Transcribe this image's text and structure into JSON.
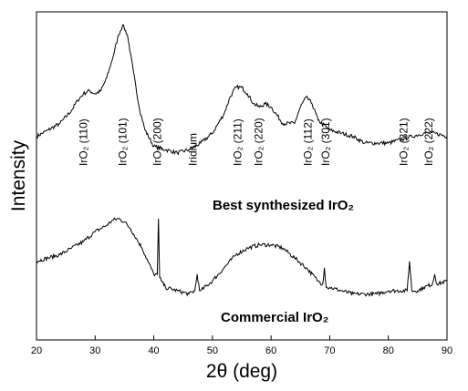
{
  "chart_data": {
    "type": "line",
    "xlabel": "2θ (deg)",
    "ylabel": "Intensity",
    "xlim": [
      20,
      90
    ],
    "xticks": [
      20,
      30,
      40,
      50,
      60,
      70,
      80,
      90
    ],
    "y_ticks_shown": false,
    "grid": false,
    "peak_annotations": [
      {
        "label": "IrO₂ (110)",
        "x": 28
      },
      {
        "label": "IrO₂ (101)",
        "x": 34.7
      },
      {
        "label": "IrO₂ (200)",
        "x": 40.6
      },
      {
        "label": "Iridium",
        "x": 46.7
      },
      {
        "label": "IrO₂ (211)",
        "x": 54.3
      },
      {
        "label": "IrO₂ (220)",
        "x": 57.9
      },
      {
        "label": "IrO₂ (112)",
        "x": 66.3
      },
      {
        "label": "IrO₂ (301)",
        "x": 69.3
      },
      {
        "label": "IrO₂ (321)",
        "x": 82.6
      },
      {
        "label": "IrO₂ (222)",
        "x": 86.9
      }
    ],
    "series": [
      {
        "name": "Best synthesized IrO₂",
        "x": [
          20,
          22,
          24,
          26,
          27,
          28,
          29,
          30,
          31,
          32,
          33,
          34,
          34.7,
          35.5,
          36.5,
          37.5,
          38.5,
          40,
          42,
          44,
          46,
          48,
          50,
          52,
          53,
          54,
          55,
          56,
          57,
          58,
          59,
          60,
          62,
          64,
          65,
          66,
          67,
          68,
          70,
          72,
          74,
          76,
          78,
          80,
          82,
          84,
          86,
          88,
          90
        ],
        "y": [
          0.62,
          0.64,
          0.66,
          0.7,
          0.73,
          0.75,
          0.76,
          0.75,
          0.76,
          0.8,
          0.86,
          0.93,
          0.96,
          0.93,
          0.82,
          0.71,
          0.64,
          0.59,
          0.58,
          0.57,
          0.58,
          0.6,
          0.63,
          0.69,
          0.74,
          0.77,
          0.77,
          0.75,
          0.72,
          0.71,
          0.72,
          0.71,
          0.66,
          0.66,
          0.71,
          0.74,
          0.72,
          0.67,
          0.64,
          0.63,
          0.62,
          0.6,
          0.6,
          0.6,
          0.61,
          0.62,
          0.63,
          0.63,
          0.62
        ]
      },
      {
        "name": "Commercial IrO₂",
        "x": [
          20,
          22,
          24,
          26,
          28,
          30,
          32,
          33,
          34,
          35,
          36,
          37,
          38,
          39,
          40,
          40.6,
          40.8,
          41.0,
          41.3,
          42,
          44,
          46,
          47.0,
          47.4,
          47.8,
          48,
          50,
          52,
          54,
          56,
          58,
          60,
          62,
          64,
          66,
          68,
          68.8,
          69.1,
          69.4,
          70,
          72,
          74,
          76,
          78,
          80,
          82,
          83.2,
          83.6,
          84.0,
          85,
          86,
          87.5,
          87.9,
          88.3,
          90
        ],
        "y": [
          0.24,
          0.25,
          0.26,
          0.28,
          0.3,
          0.33,
          0.35,
          0.365,
          0.37,
          0.36,
          0.34,
          0.31,
          0.28,
          0.24,
          0.2,
          0.2,
          0.37,
          0.19,
          0.18,
          0.16,
          0.15,
          0.14,
          0.15,
          0.2,
          0.15,
          0.15,
          0.18,
          0.22,
          0.26,
          0.28,
          0.29,
          0.29,
          0.28,
          0.25,
          0.22,
          0.18,
          0.17,
          0.22,
          0.16,
          0.16,
          0.15,
          0.14,
          0.14,
          0.14,
          0.15,
          0.15,
          0.15,
          0.24,
          0.15,
          0.15,
          0.16,
          0.17,
          0.2,
          0.17,
          0.18
        ]
      }
    ]
  }
}
